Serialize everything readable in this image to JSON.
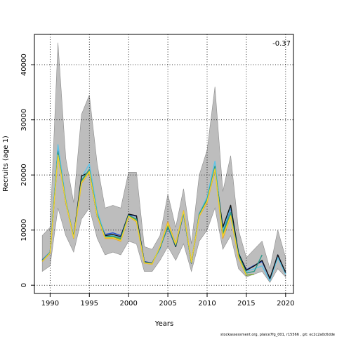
{
  "chart_data": {
    "type": "line",
    "xlabel": "Years",
    "ylabel": "Recruits (age 1)",
    "xlim": [
      1988,
      2021
    ],
    "ylim": [
      -1500,
      45500
    ],
    "x_ticks": [
      1990,
      1995,
      2000,
      2005,
      2010,
      2015,
      2020
    ],
    "y_ticks": [
      0,
      10000,
      20000,
      30000,
      40000
    ],
    "grid": true,
    "annotation": "-0.37",
    "confidence_band": {
      "x": [
        1989,
        1990,
        1991,
        1992,
        1993,
        1994,
        1995,
        1996,
        1997,
        1998,
        1999,
        2000,
        2001,
        2002,
        2003,
        2004,
        2005,
        2006,
        2007,
        2008,
        2009,
        2010,
        2011,
        2012,
        2013,
        2014,
        2015,
        2016,
        2017,
        2018,
        2019,
        2020
      ],
      "upper": [
        9000,
        10500,
        44000,
        23000,
        15000,
        31000,
        34500,
        22000,
        14000,
        14500,
        14000,
        20500,
        20500,
        7000,
        6500,
        9000,
        16500,
        10500,
        17500,
        7500,
        20000,
        24500,
        36000,
        17000,
        23500,
        10000,
        5000,
        6500,
        8000,
        3000,
        10000,
        5000
      ],
      "lower": [
        2500,
        3500,
        14000,
        9000,
        6000,
        12000,
        14000,
        8500,
        5500,
        6000,
        5500,
        8000,
        7500,
        2500,
        2500,
        4500,
        7000,
        4500,
        7500,
        2500,
        8000,
        10000,
        14000,
        6500,
        9000,
        3000,
        1500,
        2000,
        2500,
        500,
        3000,
        1500
      ]
    },
    "series": [
      {
        "color": "#1f4fd6",
        "x": [
          1989,
          1990,
          1991,
          1992,
          1993,
          1994,
          1995,
          1996,
          1997,
          1998,
          1999,
          2000,
          2001,
          2002,
          2003,
          2004,
          2005,
          2006,
          2007,
          2008,
          2009,
          2010,
          2011,
          2012,
          2013,
          2014,
          2015,
          2016,
          2017,
          2018,
          2019,
          2020
        ],
        "values": [
          4600,
          6000,
          24500,
          15000,
          8800,
          19000,
          21000,
          13000,
          9200,
          9500,
          9000,
          12800,
          12500,
          4300,
          4000,
          6800,
          10500,
          7000,
          13000,
          4000,
          13000,
          15500,
          21500,
          9800,
          14000,
          5800,
          2800,
          3600,
          4300,
          1200,
          5500,
          2300
        ]
      },
      {
        "color": "#5ec4e8",
        "x": [
          1989,
          1990,
          1991,
          1992,
          1993,
          1994,
          1995,
          1996,
          1997,
          1998,
          1999,
          2000,
          2001,
          2002,
          2003,
          2004,
          2005,
          2006,
          2007,
          2008,
          2009,
          2010,
          2011,
          2012,
          2013,
          2014,
          2015,
          2016,
          2017,
          2018,
          2019,
          2020
        ],
        "values": [
          4500,
          6000,
          25500,
          15500,
          8500,
          19500,
          22000,
          13500,
          9000,
          9000,
          8500,
          12500,
          12000,
          4200,
          4000,
          6500,
          11000,
          7200,
          13000,
          4000,
          13000,
          16000,
          22500,
          10000,
          14200,
          6000,
          2500,
          3000,
          3500,
          800,
          5000,
          2000
        ]
      },
      {
        "color": "#111111",
        "x": [
          1989,
          1990,
          1991,
          1992,
          1993,
          1994,
          1995,
          1996,
          1997,
          1998,
          1999,
          2000,
          2001,
          2002,
          2003,
          2004,
          2005,
          2006,
          2007,
          2008,
          2009,
          2010,
          2011,
          2012,
          2013,
          2014,
          2015,
          2016,
          2017,
          2018,
          2019,
          2020
        ],
        "values": [
          4500,
          5800,
          24000,
          15000,
          8800,
          19800,
          20500,
          12500,
          9000,
          9200,
          8800,
          12900,
          12600,
          4200,
          4000,
          6800,
          10800,
          7000,
          13200,
          4000,
          12800,
          15200,
          21000,
          10500,
          14500,
          5800,
          2700,
          3500,
          4500,
          1200,
          5500,
          2300
        ]
      },
      {
        "color": "#e8a02c",
        "x": [
          1989,
          1990,
          1991,
          1992,
          1993,
          1994,
          1995,
          1996,
          1997,
          1998,
          1999,
          2000,
          2001,
          2002,
          2003,
          2004,
          2005,
          2006,
          2007,
          2008,
          2009,
          2010,
          2011,
          2012,
          2013,
          2014,
          2015
        ],
        "values": [
          4300,
          5800,
          23500,
          15000,
          8500,
          18500,
          20500,
          12500,
          8500,
          8500,
          8000,
          12500,
          11500,
          4000,
          3800,
          7000,
          11500,
          7500,
          13500,
          4200,
          12500,
          15000,
          21000,
          8500,
          12500,
          5000,
          1800
        ]
      },
      {
        "color": "#7aa82a",
        "x": [
          1989,
          1990,
          1991,
          1992,
          1993,
          1994,
          1995,
          1996,
          1997,
          1998,
          1999,
          2000,
          2001,
          2002,
          2003,
          2004,
          2005,
          2006,
          2007,
          2008,
          2009,
          2010,
          2011,
          2012,
          2013,
          2014,
          2015,
          2016
        ],
        "values": [
          4400,
          5900,
          23800,
          15200,
          8700,
          18800,
          20800,
          12800,
          8700,
          8800,
          8300,
          12600,
          11800,
          4100,
          3900,
          6900,
          10800,
          7300,
          13300,
          4100,
          12700,
          15400,
          21200,
          9200,
          12800,
          5200,
          1800,
          2000
        ]
      },
      {
        "color": "#2a9a8a",
        "x": [
          1989,
          1990,
          1991,
          1992,
          1993,
          1994,
          1995,
          1996,
          1997,
          1998,
          1999,
          2000,
          2001,
          2002,
          2003,
          2004,
          2005,
          2006,
          2007,
          2008,
          2009,
          2010,
          2011,
          2012,
          2013,
          2014,
          2015,
          2016,
          2017
        ],
        "values": [
          4450,
          5950,
          24200,
          15300,
          8750,
          19000,
          21000,
          12900,
          8800,
          8900,
          8500,
          12700,
          12000,
          4150,
          3950,
          6900,
          10600,
          7200,
          13200,
          4050,
          12900,
          15600,
          21600,
          9500,
          13200,
          5500,
          2200,
          2500,
          5500
        ]
      },
      {
        "color": "#f2d230",
        "x": [
          1989,
          1990,
          1991,
          1992,
          1993,
          1994,
          1995,
          1996,
          1997,
          1998,
          1999,
          2000,
          2001,
          2002,
          2003,
          2004,
          2005,
          2006,
          2007,
          2008,
          2009,
          2010,
          2011,
          2012,
          2013,
          2014,
          2015
        ],
        "values": [
          4350,
          5850,
          23600,
          15100,
          8600,
          18600,
          20600,
          12600,
          8600,
          8600,
          8100,
          12500,
          11600,
          4050,
          3850,
          7000,
          11200,
          7400,
          13400,
          4150,
          12600,
          15200,
          21100,
          8800,
          12600,
          5100,
          1900
        ]
      }
    ],
    "footer": "stockassessment.org,  plaice7fg_001,  r15566  ,  git:  ec2c2a0c6dde"
  }
}
